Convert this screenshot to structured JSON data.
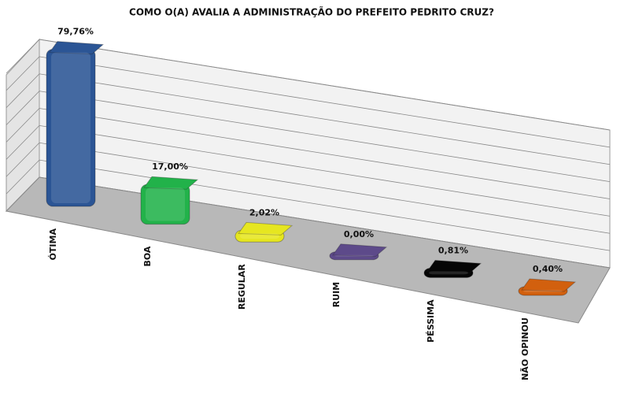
{
  "chart_data": {
    "type": "bar3d",
    "title": "COMO O(A) AVALIA A ADMINISTRAÇÃO DO PREFEITO PEDRITO CRUZ?",
    "categories": [
      "ÓTIMA",
      "BOA",
      "REGULAR",
      "RUIM",
      "PÉSSIMA",
      "NÃO OPINOU"
    ],
    "values": [
      79.76,
      17.0,
      2.02,
      0.0,
      0.81,
      0.4
    ],
    "value_labels": [
      "79,76%",
      "17,00%",
      "2,02%",
      "0,00%",
      "0,81%",
      "0,40%"
    ],
    "colors": [
      "#2b5595",
      "#22b24a",
      "#e6e620",
      "#5d4a8a",
      "#050505",
      "#d2600e"
    ],
    "ylim": [
      0,
      80
    ],
    "yticks": [
      0,
      10,
      20,
      30,
      40,
      50,
      60,
      70,
      80
    ],
    "grid": true
  }
}
